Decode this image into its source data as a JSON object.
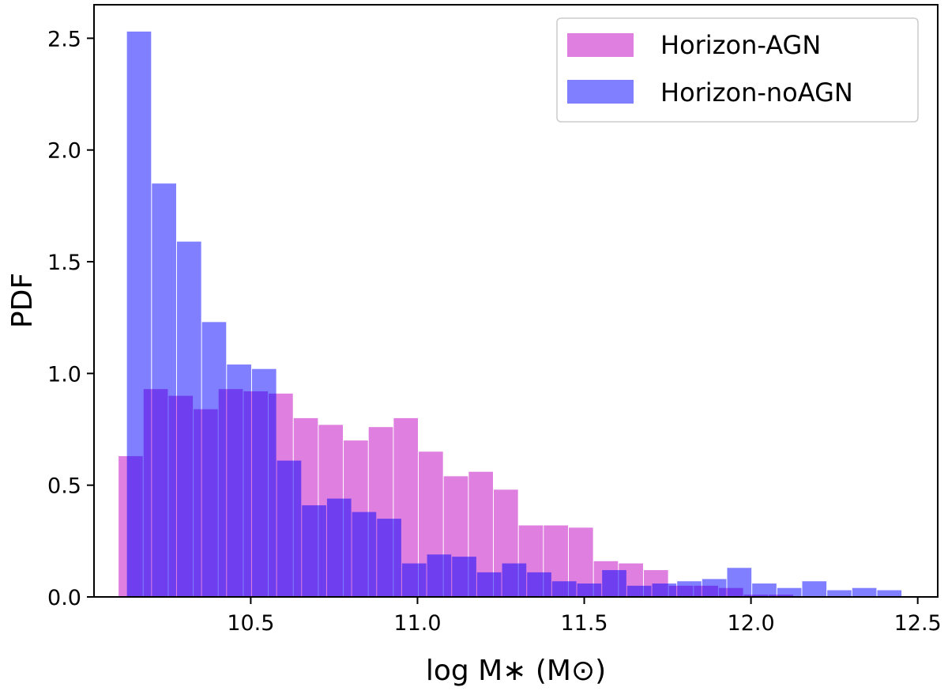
{
  "chart_data": {
    "type": "bar",
    "subtype": "overlapping-histogram",
    "title": "",
    "xlabel": "log M∗ (M⊙)",
    "ylabel": "PDF",
    "xlim": [
      10.03,
      12.56
    ],
    "ylim": [
      0,
      2.65
    ],
    "xticks": [
      "10.5",
      "11.0",
      "11.5",
      "12.0",
      "12.5"
    ],
    "yticks": [
      "0.0",
      "0.5",
      "1.0",
      "1.5",
      "2.0",
      "2.5"
    ],
    "grid": false,
    "legend_position": "top-right",
    "series": [
      {
        "name": "Horizon-AGN",
        "color": "#bf00bf",
        "opacity": 0.5,
        "bins": [
          {
            "x": 10.14,
            "y": 0.63
          },
          {
            "x": 10.215,
            "y": 0.93
          },
          {
            "x": 10.29,
            "y": 0.9
          },
          {
            "x": 10.365,
            "y": 0.84
          },
          {
            "x": 10.44,
            "y": 0.93
          },
          {
            "x": 10.515,
            "y": 0.92
          },
          {
            "x": 10.59,
            "y": 0.91
          },
          {
            "x": 10.665,
            "y": 0.8
          },
          {
            "x": 10.74,
            "y": 0.77
          },
          {
            "x": 10.815,
            "y": 0.7
          },
          {
            "x": 10.89,
            "y": 0.76
          },
          {
            "x": 10.965,
            "y": 0.8
          },
          {
            "x": 11.04,
            "y": 0.65
          },
          {
            "x": 11.115,
            "y": 0.54
          },
          {
            "x": 11.19,
            "y": 0.56
          },
          {
            "x": 11.265,
            "y": 0.48
          },
          {
            "x": 11.34,
            "y": 0.32
          },
          {
            "x": 11.415,
            "y": 0.32
          },
          {
            "x": 11.49,
            "y": 0.31
          },
          {
            "x": 11.565,
            "y": 0.16
          },
          {
            "x": 11.64,
            "y": 0.15
          },
          {
            "x": 11.715,
            "y": 0.12
          },
          {
            "x": 11.79,
            "y": 0.05
          },
          {
            "x": 11.865,
            "y": 0.05
          },
          {
            "x": 11.94,
            "y": 0.04
          },
          {
            "x": 12.015,
            "y": 0.01
          },
          {
            "x": 12.09,
            "y": 0.01
          }
        ]
      },
      {
        "name": "Horizon-noAGN",
        "color": "#0000ff",
        "opacity": 0.5,
        "bins": [
          {
            "x": 10.165,
            "y": 2.53
          },
          {
            "x": 10.24,
            "y": 1.85
          },
          {
            "x": 10.315,
            "y": 1.59
          },
          {
            "x": 10.39,
            "y": 1.23
          },
          {
            "x": 10.465,
            "y": 1.04
          },
          {
            "x": 10.54,
            "y": 1.02
          },
          {
            "x": 10.615,
            "y": 0.61
          },
          {
            "x": 10.69,
            "y": 0.41
          },
          {
            "x": 10.765,
            "y": 0.44
          },
          {
            "x": 10.84,
            "y": 0.38
          },
          {
            "x": 10.915,
            "y": 0.35
          },
          {
            "x": 10.99,
            "y": 0.15
          },
          {
            "x": 11.065,
            "y": 0.19
          },
          {
            "x": 11.14,
            "y": 0.18
          },
          {
            "x": 11.215,
            "y": 0.11
          },
          {
            "x": 11.29,
            "y": 0.15
          },
          {
            "x": 11.365,
            "y": 0.11
          },
          {
            "x": 11.44,
            "y": 0.07
          },
          {
            "x": 11.515,
            "y": 0.06
          },
          {
            "x": 11.59,
            "y": 0.12
          },
          {
            "x": 11.665,
            "y": 0.05
          },
          {
            "x": 11.74,
            "y": 0.06
          },
          {
            "x": 11.815,
            "y": 0.07
          },
          {
            "x": 11.89,
            "y": 0.08
          },
          {
            "x": 11.965,
            "y": 0.13
          },
          {
            "x": 12.04,
            "y": 0.06
          },
          {
            "x": 12.115,
            "y": 0.04
          },
          {
            "x": 12.19,
            "y": 0.07
          },
          {
            "x": 12.265,
            "y": 0.03
          },
          {
            "x": 12.34,
            "y": 0.04
          },
          {
            "x": 12.415,
            "y": 0.03
          }
        ]
      }
    ],
    "bin_width": 0.075
  }
}
